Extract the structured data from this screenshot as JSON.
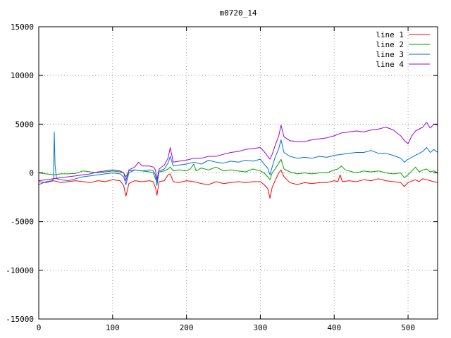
{
  "chart_data": {
    "type": "line",
    "title": "m0720_14",
    "xlabel": "",
    "ylabel": "",
    "xlim": [
      0,
      540
    ],
    "ylim": [
      -15000,
      15000
    ],
    "grid": true,
    "legend_position": "top-right",
    "x_ticks": [
      0,
      100,
      200,
      300,
      400,
      500
    ],
    "y_ticks": [
      -15000,
      -10000,
      -5000,
      0,
      5000,
      10000,
      15000
    ],
    "x_tick_labels": [
      "0",
      "100",
      "200",
      "300",
      "400",
      "500"
    ],
    "y_tick_labels": [
      "-15000",
      "-10000",
      "-5000",
      "0",
      "5000",
      "10000",
      "15000"
    ],
    "series": [
      {
        "name": "line 1",
        "color": "#ff0000",
        "points": [
          [
            0,
            -900
          ],
          [
            10,
            -1000
          ],
          [
            20,
            -800
          ],
          [
            30,
            -1000
          ],
          [
            40,
            -900
          ],
          [
            50,
            -800
          ],
          [
            60,
            -900
          ],
          [
            70,
            -1000
          ],
          [
            80,
            -800
          ],
          [
            90,
            -900
          ],
          [
            100,
            -700
          ],
          [
            110,
            -800
          ],
          [
            115,
            -1300
          ],
          [
            118,
            -2400
          ],
          [
            122,
            -1100
          ],
          [
            130,
            -800
          ],
          [
            140,
            -900
          ],
          [
            150,
            -800
          ],
          [
            155,
            -900
          ],
          [
            158,
            -1500
          ],
          [
            160,
            -2300
          ],
          [
            163,
            -900
          ],
          [
            170,
            -800
          ],
          [
            175,
            -200
          ],
          [
            178,
            -100
          ],
          [
            182,
            -900
          ],
          [
            190,
            -1000
          ],
          [
            200,
            -800
          ],
          [
            210,
            -900
          ],
          [
            220,
            -1100
          ],
          [
            230,
            -1200
          ],
          [
            240,
            -900
          ],
          [
            250,
            -1100
          ],
          [
            260,
            -1000
          ],
          [
            270,
            -900
          ],
          [
            280,
            -1000
          ],
          [
            290,
            -900
          ],
          [
            300,
            -900
          ],
          [
            305,
            -1200
          ],
          [
            310,
            -1600
          ],
          [
            313,
            -2600
          ],
          [
            316,
            -1500
          ],
          [
            320,
            -800
          ],
          [
            325,
            0
          ],
          [
            328,
            300
          ],
          [
            332,
            -400
          ],
          [
            340,
            -1000
          ],
          [
            350,
            -1200
          ],
          [
            360,
            -1000
          ],
          [
            370,
            -1100
          ],
          [
            380,
            -1000
          ],
          [
            390,
            -1000
          ],
          [
            400,
            -800
          ],
          [
            405,
            -900
          ],
          [
            408,
            -200
          ],
          [
            411,
            -900
          ],
          [
            420,
            -800
          ],
          [
            430,
            -900
          ],
          [
            440,
            -700
          ],
          [
            450,
            -800
          ],
          [
            460,
            -600
          ],
          [
            470,
            -800
          ],
          [
            480,
            -900
          ],
          [
            490,
            -1000
          ],
          [
            495,
            -1400
          ],
          [
            500,
            -1000
          ],
          [
            510,
            -700
          ],
          [
            515,
            -900
          ],
          [
            520,
            -600
          ],
          [
            525,
            -700
          ],
          [
            530,
            -800
          ],
          [
            535,
            -900
          ],
          [
            540,
            -1000
          ]
        ]
      },
      {
        "name": "line 2",
        "color": "#00a000",
        "points": [
          [
            0,
            0
          ],
          [
            10,
            -100
          ],
          [
            20,
            -200
          ],
          [
            30,
            -100
          ],
          [
            40,
            -100
          ],
          [
            50,
            -50
          ],
          [
            60,
            200
          ],
          [
            70,
            100
          ],
          [
            80,
            0
          ],
          [
            90,
            100
          ],
          [
            100,
            200
          ],
          [
            110,
            100
          ],
          [
            115,
            0
          ],
          [
            118,
            -400
          ],
          [
            122,
            200
          ],
          [
            130,
            300
          ],
          [
            140,
            200
          ],
          [
            150,
            100
          ],
          [
            155,
            0
          ],
          [
            158,
            -600
          ],
          [
            160,
            -900
          ],
          [
            163,
            100
          ],
          [
            170,
            200
          ],
          [
            175,
            400
          ],
          [
            178,
            600
          ],
          [
            182,
            200
          ],
          [
            190,
            300
          ],
          [
            200,
            200
          ],
          [
            205,
            400
          ],
          [
            210,
            900
          ],
          [
            213,
            200
          ],
          [
            220,
            500
          ],
          [
            230,
            300
          ],
          [
            240,
            600
          ],
          [
            250,
            200
          ],
          [
            260,
            300
          ],
          [
            270,
            200
          ],
          [
            280,
            100
          ],
          [
            290,
            400
          ],
          [
            300,
            200
          ],
          [
            305,
            0
          ],
          [
            310,
            -400
          ],
          [
            313,
            -700
          ],
          [
            316,
            0
          ],
          [
            320,
            400
          ],
          [
            325,
            1000
          ],
          [
            328,
            1400
          ],
          [
            332,
            400
          ],
          [
            340,
            100
          ],
          [
            350,
            -100
          ],
          [
            360,
            0
          ],
          [
            370,
            -100
          ],
          [
            380,
            0
          ],
          [
            390,
            0
          ],
          [
            400,
            300
          ],
          [
            405,
            400
          ],
          [
            410,
            700
          ],
          [
            415,
            300
          ],
          [
            420,
            200
          ],
          [
            430,
            0
          ],
          [
            440,
            200
          ],
          [
            450,
            100
          ],
          [
            460,
            200
          ],
          [
            470,
            0
          ],
          [
            480,
            -100
          ],
          [
            490,
            0
          ],
          [
            495,
            -500
          ],
          [
            500,
            -200
          ],
          [
            505,
            200
          ],
          [
            510,
            600
          ],
          [
            515,
            100
          ],
          [
            520,
            300
          ],
          [
            525,
            400
          ],
          [
            530,
            100
          ],
          [
            535,
            200
          ],
          [
            540,
            0
          ]
        ]
      },
      {
        "name": "line 3",
        "color": "#0070e0",
        "points": [
          [
            0,
            -1200
          ],
          [
            10,
            -900
          ],
          [
            18,
            -800
          ],
          [
            20,
            -600
          ],
          [
            21,
            4200
          ],
          [
            22,
            800
          ],
          [
            24,
            -600
          ],
          [
            30,
            -700
          ],
          [
            40,
            -800
          ],
          [
            50,
            -600
          ],
          [
            60,
            -400
          ],
          [
            70,
            -300
          ],
          [
            80,
            -200
          ],
          [
            90,
            -100
          ],
          [
            100,
            0
          ],
          [
            110,
            -100
          ],
          [
            115,
            -400
          ],
          [
            118,
            -1200
          ],
          [
            122,
            0
          ],
          [
            130,
            300
          ],
          [
            140,
            200
          ],
          [
            150,
            300
          ],
          [
            155,
            200
          ],
          [
            158,
            -200
          ],
          [
            160,
            -1300
          ],
          [
            163,
            200
          ],
          [
            170,
            400
          ],
          [
            175,
            1000
          ],
          [
            178,
            1700
          ],
          [
            182,
            700
          ],
          [
            190,
            800
          ],
          [
            200,
            900
          ],
          [
            210,
            1100
          ],
          [
            220,
            900
          ],
          [
            230,
            1300
          ],
          [
            240,
            1100
          ],
          [
            250,
            1000
          ],
          [
            260,
            1200
          ],
          [
            270,
            1100
          ],
          [
            280,
            1300
          ],
          [
            290,
            1200
          ],
          [
            300,
            1400
          ],
          [
            305,
            900
          ],
          [
            310,
            500
          ],
          [
            313,
            -200
          ],
          [
            316,
            600
          ],
          [
            320,
            1600
          ],
          [
            325,
            2500
          ],
          [
            328,
            3400
          ],
          [
            332,
            2100
          ],
          [
            340,
            1700
          ],
          [
            350,
            1500
          ],
          [
            360,
            1600
          ],
          [
            370,
            1500
          ],
          [
            380,
            1700
          ],
          [
            390,
            1600
          ],
          [
            400,
            1800
          ],
          [
            410,
            1900
          ],
          [
            420,
            2000
          ],
          [
            430,
            2100
          ],
          [
            440,
            2100
          ],
          [
            450,
            2300
          ],
          [
            460,
            2000
          ],
          [
            470,
            2000
          ],
          [
            480,
            1800
          ],
          [
            490,
            1500
          ],
          [
            495,
            1100
          ],
          [
            500,
            1400
          ],
          [
            505,
            1600
          ],
          [
            510,
            1800
          ],
          [
            520,
            2200
          ],
          [
            525,
            2600
          ],
          [
            530,
            2100
          ],
          [
            535,
            2400
          ],
          [
            540,
            2100
          ]
        ]
      },
      {
        "name": "line 4",
        "color": "#a000e0",
        "points": [
          [
            0,
            -800
          ],
          [
            10,
            -700
          ],
          [
            20,
            -600
          ],
          [
            30,
            -500
          ],
          [
            40,
            -400
          ],
          [
            50,
            -300
          ],
          [
            60,
            -200
          ],
          [
            70,
            -100
          ],
          [
            80,
            100
          ],
          [
            90,
            200
          ],
          [
            100,
            300
          ],
          [
            110,
            200
          ],
          [
            115,
            0
          ],
          [
            118,
            -800
          ],
          [
            122,
            300
          ],
          [
            130,
            600
          ],
          [
            135,
            1100
          ],
          [
            140,
            700
          ],
          [
            150,
            700
          ],
          [
            155,
            600
          ],
          [
            158,
            300
          ],
          [
            160,
            -700
          ],
          [
            163,
            400
          ],
          [
            170,
            800
          ],
          [
            175,
            1500
          ],
          [
            178,
            2600
          ],
          [
            182,
            1100
          ],
          [
            190,
            1200
          ],
          [
            200,
            1300
          ],
          [
            210,
            1500
          ],
          [
            220,
            1500
          ],
          [
            230,
            1700
          ],
          [
            240,
            1700
          ],
          [
            250,
            1900
          ],
          [
            260,
            2100
          ],
          [
            270,
            2200
          ],
          [
            280,
            2400
          ],
          [
            290,
            2500
          ],
          [
            300,
            2600
          ],
          [
            305,
            2200
          ],
          [
            310,
            1700
          ],
          [
            313,
            1400
          ],
          [
            316,
            1900
          ],
          [
            320,
            2800
          ],
          [
            325,
            3800
          ],
          [
            328,
            4900
          ],
          [
            332,
            3700
          ],
          [
            340,
            3300
          ],
          [
            350,
            3200
          ],
          [
            360,
            3200
          ],
          [
            370,
            3400
          ],
          [
            380,
            3500
          ],
          [
            390,
            3600
          ],
          [
            400,
            3800
          ],
          [
            410,
            4100
          ],
          [
            420,
            4200
          ],
          [
            430,
            4300
          ],
          [
            440,
            4200
          ],
          [
            450,
            4400
          ],
          [
            460,
            4500
          ],
          [
            470,
            4700
          ],
          [
            480,
            4400
          ],
          [
            490,
            3800
          ],
          [
            495,
            3300
          ],
          [
            500,
            3000
          ],
          [
            505,
            3800
          ],
          [
            510,
            4300
          ],
          [
            520,
            4700
          ],
          [
            525,
            5200
          ],
          [
            530,
            4600
          ],
          [
            535,
            5000
          ],
          [
            540,
            4900
          ]
        ]
      }
    ]
  }
}
